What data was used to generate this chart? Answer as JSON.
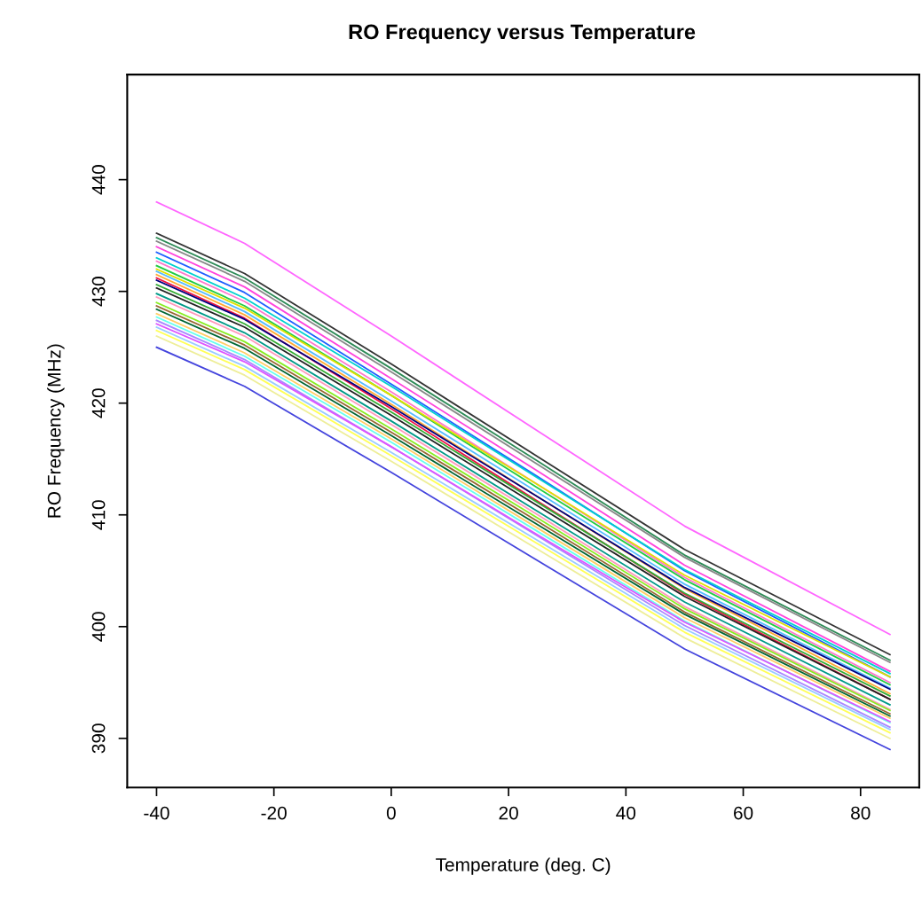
{
  "chart_data": {
    "type": "line",
    "title": "RO Frequency versus Temperature",
    "xlabel": "Temperature (deg. C)",
    "ylabel": "RO Frequency (MHz)",
    "x": [
      -40,
      -25,
      0,
      25,
      50,
      85
    ],
    "xlim": [
      -45,
      90
    ],
    "ylim": [
      385.6,
      449.4
    ],
    "xticks": [
      -40,
      -20,
      0,
      20,
      40,
      60,
      80
    ],
    "yticks": [
      390,
      400,
      410,
      420,
      430,
      440
    ],
    "grid": false,
    "marker": "none",
    "line_style": "solid",
    "series": [
      {
        "color": "#ff66ff",
        "values": [
          438.0,
          434.3,
          426.0,
          417.5,
          409.0,
          399.3
        ]
      },
      {
        "color": "#333333",
        "values": [
          435.2,
          431.6,
          423.5,
          415.2,
          406.9,
          397.5
        ]
      },
      {
        "color": "#2e8b57",
        "values": [
          434.8,
          431.2,
          423.1,
          414.8,
          406.4,
          397.0
        ]
      },
      {
        "color": "#888888",
        "values": [
          434.5,
          430.9,
          422.8,
          414.5,
          406.2,
          396.8
        ]
      },
      {
        "color": "#ff44dd",
        "values": [
          434.0,
          430.4,
          422.2,
          413.9,
          405.5,
          396.0
        ]
      },
      {
        "color": "#1f5fff",
        "values": [
          433.5,
          429.9,
          421.7,
          413.4,
          405.0,
          395.5
        ]
      },
      {
        "color": "#00d0d0",
        "values": [
          433.0,
          429.4,
          421.5,
          413.3,
          405.1,
          395.8
        ]
      },
      {
        "color": "#ff77cc",
        "values": [
          432.7,
          429.1,
          421.0,
          412.7,
          404.4,
          395.0
        ]
      },
      {
        "color": "#22cc44",
        "values": [
          432.3,
          428.7,
          420.7,
          412.4,
          404.2,
          394.8
        ]
      },
      {
        "color": "#e0e000",
        "values": [
          432.0,
          428.5,
          420.7,
          412.7,
          404.6,
          395.5
        ]
      },
      {
        "color": "#55bbff",
        "values": [
          431.8,
          428.2,
          420.2,
          412.0,
          403.8,
          394.5
        ]
      },
      {
        "color": "#ffaa33",
        "values": [
          431.5,
          427.9,
          419.9,
          411.6,
          403.4,
          394.0
        ]
      },
      {
        "color": "#ee1144",
        "values": [
          431.2,
          427.6,
          419.5,
          411.2,
          402.9,
          393.5
        ]
      },
      {
        "color": "#000080",
        "values": [
          431.0,
          427.5,
          419.7,
          411.6,
          403.5,
          394.4
        ]
      },
      {
        "color": "#33aa33",
        "values": [
          430.6,
          427.1,
          419.2,
          411.1,
          403.0,
          393.8
        ]
      },
      {
        "color": "#222222",
        "values": [
          430.3,
          426.8,
          418.9,
          410.8,
          402.7,
          393.5
        ]
      },
      {
        "color": "#009988",
        "values": [
          429.8,
          426.3,
          418.4,
          410.3,
          402.2,
          393.0
        ]
      },
      {
        "color": "#ff99bb",
        "values": [
          429.5,
          426.0,
          418.1,
          410.0,
          401.8,
          392.6
        ]
      },
      {
        "color": "#88ee22",
        "values": [
          429.0,
          425.5,
          417.7,
          409.7,
          401.6,
          392.5
        ]
      },
      {
        "color": "#996633",
        "values": [
          428.7,
          425.2,
          417.4,
          409.4,
          401.3,
          392.2
        ]
      },
      {
        "color": "#006633",
        "values": [
          428.4,
          424.9,
          417.1,
          409.1,
          401.1,
          392.0
        ]
      },
      {
        "color": "#ffcc66",
        "values": [
          428.0,
          424.5,
          416.8,
          408.8,
          400.8,
          391.8
        ]
      },
      {
        "color": "#66ffee",
        "values": [
          427.7,
          424.2,
          416.5,
          408.5,
          400.5,
          391.4
        ]
      },
      {
        "color": "#aa88ff",
        "values": [
          427.4,
          423.9,
          416.1,
          408.1,
          400.1,
          391.0
        ]
      },
      {
        "color": "#dd55ff",
        "values": [
          427.1,
          423.7,
          416.1,
          408.2,
          400.4,
          391.5
        ]
      },
      {
        "color": "#99ccff",
        "values": [
          426.8,
          423.3,
          415.6,
          407.7,
          399.8,
          390.8
        ]
      },
      {
        "color": "#ffff55",
        "values": [
          426.5,
          423.0,
          415.3,
          407.4,
          399.5,
          390.5
        ]
      },
      {
        "color": "#eeee99",
        "values": [
          426.0,
          422.5,
          414.8,
          406.9,
          399.0,
          390.0
        ]
      },
      {
        "color": "#4444dd",
        "values": [
          425.0,
          421.5,
          413.8,
          405.9,
          398.0,
          389.0
        ]
      }
    ]
  }
}
